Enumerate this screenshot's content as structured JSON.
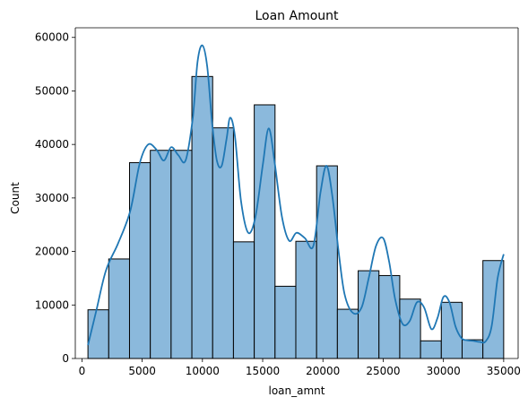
{
  "chart_data": {
    "type": "bar",
    "title": "Loan Amount",
    "xlabel": "loan_amnt",
    "ylabel": "Count",
    "xlim": [
      -550,
      36200
    ],
    "ylim": [
      0,
      61800
    ],
    "xticks": [
      0,
      5000,
      10000,
      15000,
      20000,
      25000,
      30000,
      35000
    ],
    "yticks": [
      0,
      10000,
      20000,
      30000,
      40000,
      50000,
      60000
    ],
    "bin_edges": [
      500,
      2225,
      3950,
      5675,
      7400,
      9125,
      10850,
      12575,
      14300,
      16025,
      17750,
      19475,
      21200,
      22925,
      24650,
      26375,
      28100,
      29825,
      31550,
      33275,
      35000
    ],
    "values": [
      9100,
      18600,
      36600,
      38900,
      38900,
      52700,
      43100,
      21800,
      47400,
      13500,
      21900,
      36000,
      9200,
      16400,
      15500,
      11100,
      3300,
      10500,
      3500,
      18300
    ],
    "kde": {
      "x": [
        500,
        1200,
        2000,
        3000,
        4000,
        4800,
        5500,
        6200,
        6800,
        7400,
        8000,
        8600,
        9200,
        9600,
        10000,
        10400,
        10800,
        11200,
        11600,
        12000,
        12300,
        12700,
        13200,
        13800,
        14400,
        15000,
        15500,
        16000,
        16600,
        17200,
        17800,
        18500,
        19200,
        19800,
        20300,
        20800,
        21300,
        21800,
        22500,
        23200,
        23800,
        24400,
        25000,
        25500,
        26000,
        26600,
        27200,
        27800,
        28400,
        29000,
        29500,
        30000,
        30500,
        31000,
        31500,
        32000,
        32500,
        33000,
        33500,
        34000,
        34500,
        35000
      ],
      "y": [
        2500,
        9000,
        16500,
        21500,
        27500,
        36500,
        40000,
        39000,
        37000,
        39500,
        38000,
        37000,
        45000,
        55500,
        58500,
        54500,
        44000,
        37000,
        36000,
        41000,
        45000,
        41500,
        29500,
        23500,
        26500,
        36000,
        43000,
        36500,
        26500,
        22000,
        23500,
        22500,
        21000,
        31000,
        36000,
        30000,
        20000,
        12000,
        8500,
        9500,
        15000,
        21000,
        22500,
        18000,
        11000,
        6500,
        7000,
        10500,
        9500,
        5500,
        7500,
        11500,
        10500,
        6000,
        3800,
        3400,
        3300,
        3100,
        3200,
        6000,
        15000,
        19500
      ]
    },
    "bar_color": "#8bb9dc",
    "bar_edge_color": "#000000",
    "kde_color": "#1f77b4",
    "grid": false,
    "legend": "none"
  }
}
